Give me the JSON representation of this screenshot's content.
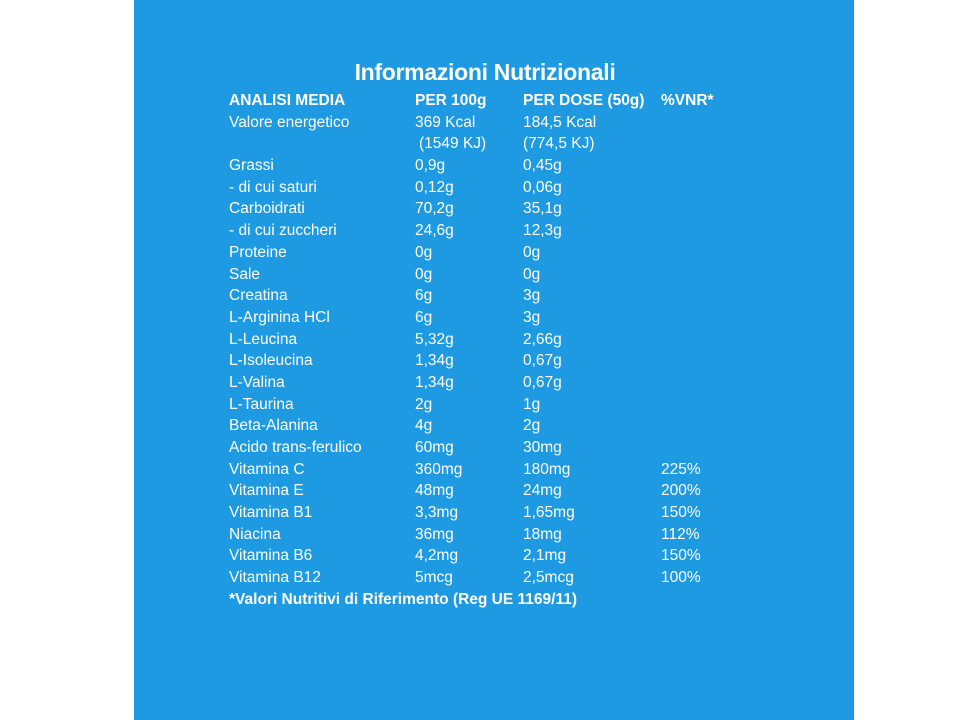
{
  "title": "Informazioni Nutrizionali",
  "header": {
    "col1": "ANALISI MEDIA",
    "col2": "PER 100g",
    "col3": "PER DOSE (50g)",
    "col4": "%VNR*"
  },
  "rows": [
    {
      "name": "Valore energetico",
      "per100": "369 Kcal",
      "per100_b": " (1549 KJ)",
      "dose": "184,5 Kcal",
      "dose_b": "(774,5 KJ)",
      "vnr": ""
    },
    {
      "name": "Grassi",
      "per100": "0,9g",
      "dose": "0,45g",
      "vnr": ""
    },
    {
      "name": "- di cui saturi",
      "per100": "0,12g",
      "dose": "0,06g",
      "vnr": ""
    },
    {
      "name": "Carboidrati",
      "per100": "70,2g",
      "dose": "35,1g",
      "vnr": ""
    },
    {
      "name": "- di cui zuccheri",
      "per100": "24,6g",
      "dose": "12,3g",
      "vnr": ""
    },
    {
      "name": "Proteine",
      "per100": "0g",
      "dose": "0g",
      "vnr": ""
    },
    {
      "name": "Sale",
      "per100": "0g",
      "dose": "0g",
      "vnr": ""
    },
    {
      "name": "Creatina",
      "per100": "6g",
      "dose": "3g",
      "vnr": ""
    },
    {
      "name": "L-Arginina HCl",
      "per100": "6g",
      "dose": "3g",
      "vnr": ""
    },
    {
      "name": "L-Leucina",
      "per100": "5,32g",
      "dose": "2,66g",
      "vnr": ""
    },
    {
      "name": "L-Isoleucina",
      "per100": "1,34g",
      "dose": "0,67g",
      "vnr": ""
    },
    {
      "name": "L-Valina",
      "per100": "1,34g",
      "dose": "0,67g",
      "vnr": ""
    },
    {
      "name": "L-Taurina",
      "per100": "2g",
      "dose": "1g",
      "vnr": ""
    },
    {
      "name": "Beta-Alanina",
      "per100": "4g",
      "dose": "2g",
      "vnr": ""
    },
    {
      "name": "Acido trans-ferulico",
      "per100": "60mg",
      "dose": "30mg",
      "vnr": ""
    },
    {
      "name": "Vitamina C",
      "per100": "360mg",
      "dose": "180mg",
      "vnr": "225%"
    },
    {
      "name": "Vitamina E",
      "per100": "48mg",
      "dose": " 24mg",
      "vnr": "200%"
    },
    {
      "name": "Vitamina B1",
      "per100": "3,3mg",
      "dose": "1,65mg",
      "vnr": "150%"
    },
    {
      "name": "Niacina",
      "per100": "36mg",
      "dose": "18mg",
      "vnr": "112%"
    },
    {
      "name": "Vitamina B6",
      "per100": "4,2mg",
      "dose": "2,1mg",
      "vnr": "150%"
    },
    {
      "name": "Vitamina B12",
      "per100": "5mcg",
      "dose": "2,5mcg",
      "vnr": "100%"
    }
  ],
  "footnote": "*Valori Nutritivi di Riferimento (Reg UE 1169/11)",
  "colors": {
    "panel": "#1e9ae2",
    "text": "#ffffff",
    "page": "#ffffff"
  }
}
